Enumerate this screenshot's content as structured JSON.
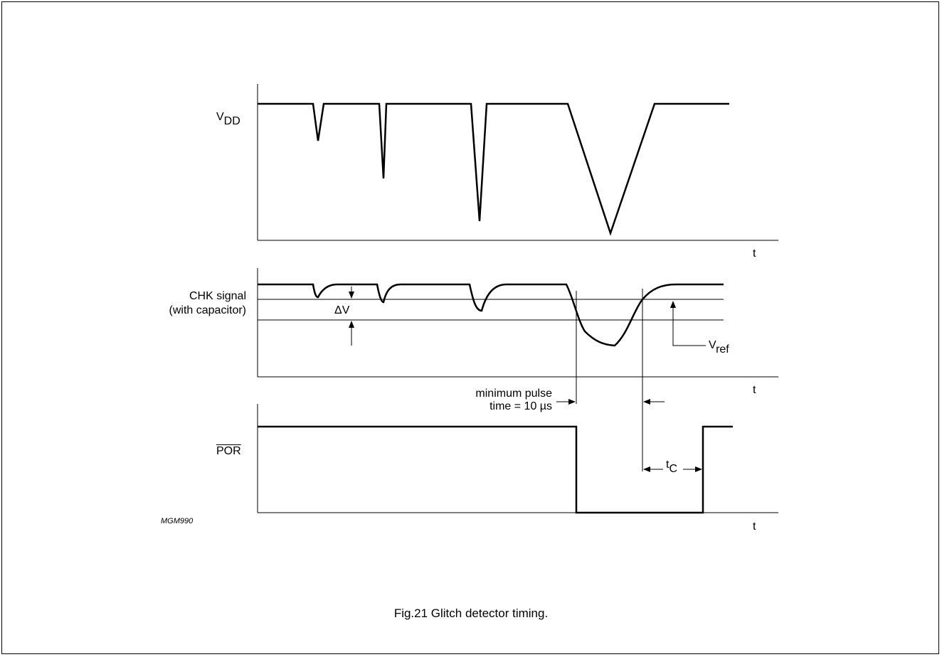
{
  "signals": {
    "vdd": {
      "main": "V",
      "sub": "DD"
    },
    "chk_line1": "CHK signal",
    "chk_line2": "(with capacitor)",
    "por": "POR"
  },
  "axis": {
    "t_label": "t"
  },
  "annotations": {
    "delta_v": "ΔV",
    "vref_main": "V",
    "vref_sub": "ref",
    "min_pulse_line1": "minimum pulse",
    "min_pulse_line2": "time = 10 µs",
    "tc_main": "t",
    "tc_sub": "C"
  },
  "figure_code": "MGM990",
  "caption": "Fig.21  Glitch detector timing."
}
